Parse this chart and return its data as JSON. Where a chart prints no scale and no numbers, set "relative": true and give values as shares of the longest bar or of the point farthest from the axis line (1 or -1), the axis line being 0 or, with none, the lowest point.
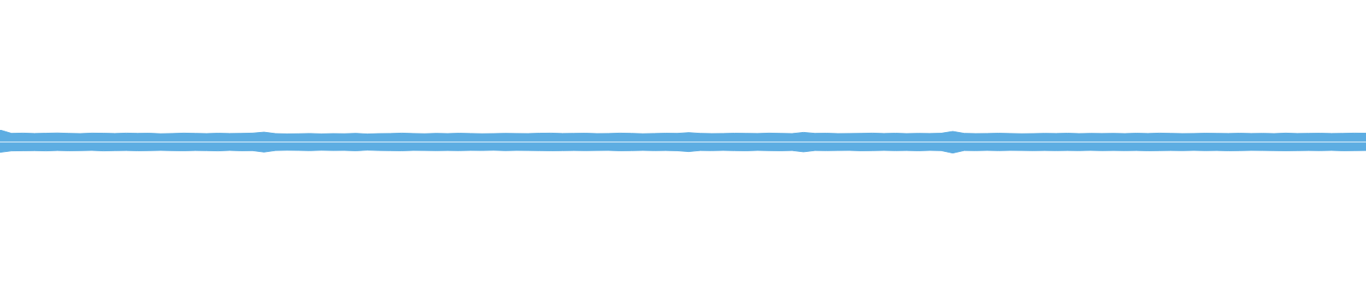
{
  "chart_data": {
    "type": "area",
    "relative": true,
    "categories": [
      null,
      null,
      null,
      null,
      null,
      null,
      null,
      null,
      null,
      null,
      null,
      null,
      null,
      null,
      null,
      null,
      null,
      null,
      null,
      null,
      null,
      null,
      null,
      null,
      null,
      null,
      null,
      null,
      null,
      null,
      null,
      null,
      null,
      null,
      null,
      null,
      null,
      null,
      null,
      null,
      null,
      null,
      null,
      null,
      null,
      null,
      null,
      null,
      null,
      null,
      null,
      null,
      null,
      null,
      null,
      null,
      null,
      null,
      null,
      null,
      null,
      null,
      null,
      null,
      null,
      null,
      null,
      null,
      null,
      null,
      null,
      null,
      null,
      null,
      null,
      null,
      null,
      null,
      null,
      null,
      null,
      null,
      null,
      null,
      null,
      null,
      null,
      null,
      null,
      null,
      null,
      null,
      null,
      null,
      null,
      null,
      null,
      null,
      null,
      null,
      null,
      null,
      null,
      null,
      null,
      null,
      null,
      null,
      null,
      null,
      null,
      null,
      null,
      null,
      null,
      null,
      null,
      null,
      null,
      null
    ],
    "series": [
      {
        "color": "#5dade2",
        "values": [
          1.0,
          0.72,
          0.74,
          0.71,
          0.73,
          0.75,
          0.72,
          0.7,
          0.74,
          0.73,
          0.71,
          0.74,
          0.72,
          0.73,
          0.69,
          0.71,
          0.74,
          0.72,
          0.7,
          0.73,
          0.71,
          0.72,
          0.74,
          0.82,
          0.7,
          0.68,
          0.69,
          0.71,
          0.68,
          0.7,
          0.69,
          0.72,
          0.67,
          0.7,
          0.71,
          0.74,
          0.71,
          0.69,
          0.72,
          0.7,
          0.73,
          0.71,
          0.69,
          0.7,
          0.72,
          0.71,
          0.7,
          0.73,
          0.74,
          0.71,
          0.72,
          0.73,
          0.7,
          0.71,
          0.74,
          0.72,
          0.69,
          0.71,
          0.73,
          0.72,
          0.78,
          0.72,
          0.7,
          0.71,
          0.73,
          0.72,
          0.71,
          0.74,
          0.72,
          0.7,
          0.8,
          0.72,
          0.73,
          0.7,
          0.71,
          0.72,
          0.74,
          0.71,
          0.73,
          0.7,
          0.72,
          0.71,
          0.73,
          0.88,
          0.72,
          0.7,
          0.71,
          0.73,
          0.71,
          0.69,
          0.7,
          0.72,
          0.71,
          0.73,
          0.7,
          0.72,
          0.71,
          0.72,
          0.7,
          0.73,
          0.71,
          0.74,
          0.72,
          0.7,
          0.71,
          0.73,
          0.72,
          0.71,
          0.73,
          0.71,
          0.72,
          0.7,
          0.74,
          0.71,
          0.72,
          0.73,
          0.71,
          0.72,
          0.74,
          0.73
        ]
      },
      {
        "color": "#5dade2",
        "values": [
          -0.86,
          -0.74,
          -0.73,
          -0.72,
          -0.74,
          -0.71,
          -0.73,
          -0.72,
          -0.7,
          -0.74,
          -0.72,
          -0.71,
          -0.73,
          -0.72,
          -0.7,
          -0.72,
          -0.73,
          -0.71,
          -0.72,
          -0.74,
          -0.7,
          -0.73,
          -0.72,
          -0.84,
          -0.71,
          -0.69,
          -0.7,
          -0.72,
          -0.69,
          -0.71,
          -0.7,
          -0.73,
          -0.68,
          -0.71,
          -0.72,
          -0.73,
          -0.7,
          -0.71,
          -0.72,
          -0.71,
          -0.72,
          -0.7,
          -0.71,
          -0.69,
          -0.72,
          -0.7,
          -0.71,
          -0.72,
          -0.73,
          -0.72,
          -0.71,
          -0.72,
          -0.71,
          -0.7,
          -0.73,
          -0.72,
          -0.7,
          -0.72,
          -0.71,
          -0.73,
          -0.8,
          -0.71,
          -0.72,
          -0.7,
          -0.72,
          -0.73,
          -0.7,
          -0.72,
          -0.73,
          -0.71,
          -0.82,
          -0.71,
          -0.72,
          -0.71,
          -0.7,
          -0.73,
          -0.72,
          -0.7,
          -0.72,
          -0.71,
          -0.73,
          -0.7,
          -0.72,
          -0.92,
          -0.71,
          -0.72,
          -0.7,
          -0.72,
          -0.7,
          -0.71,
          -0.72,
          -0.71,
          -0.72,
          -0.71,
          -0.72,
          -0.7,
          -0.72,
          -0.71,
          -0.72,
          -0.71,
          -0.73,
          -0.72,
          -0.71,
          -0.72,
          -0.7,
          -0.72,
          -0.71,
          -0.73,
          -0.72,
          -0.7,
          -0.71,
          -0.72,
          -0.73,
          -0.72,
          -0.71,
          -0.72,
          -0.7,
          -0.73,
          -0.72,
          -0.71
        ]
      }
    ]
  }
}
